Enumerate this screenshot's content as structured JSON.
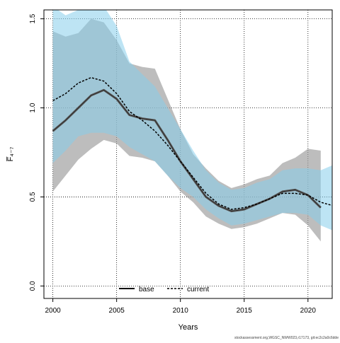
{
  "chart_data": {
    "type": "line",
    "title": "",
    "xlabel": "Years",
    "ylabel": "F̅₄₋₇",
    "xlim": [
      1999.3,
      2021.9
    ],
    "ylim": [
      -0.07,
      1.55
    ],
    "x_ticks": [
      2000,
      2005,
      2010,
      2015,
      2020
    ],
    "y_ticks": [
      0.0,
      0.5,
      1.0,
      1.5
    ],
    "y_tick_labels": [
      "0.0",
      "0.5",
      "1.0",
      "1.5"
    ],
    "grid": true,
    "legend": {
      "placement": "bottom-center"
    },
    "colors": {
      "base_band": "#999999",
      "current_band": "#87ceeb",
      "base_line": "#5a5a5a",
      "current_line": "#000000"
    },
    "series": [
      {
        "name": "base",
        "style": "solid",
        "x": [
          2000,
          2001,
          2002,
          2003,
          2004,
          2005,
          2006,
          2007,
          2008,
          2009,
          2010,
          2011,
          2012,
          2013,
          2014,
          2015,
          2016,
          2017,
          2018,
          2019,
          2020,
          2021
        ],
        "y": [
          0.87,
          0.93,
          1.0,
          1.07,
          1.1,
          1.05,
          0.96,
          0.94,
          0.93,
          0.82,
          0.7,
          0.6,
          0.5,
          0.45,
          0.42,
          0.43,
          0.46,
          0.49,
          0.53,
          0.54,
          0.51,
          0.44
        ],
        "lower": [
          0.53,
          0.62,
          0.71,
          0.77,
          0.82,
          0.8,
          0.73,
          0.72,
          0.7,
          0.62,
          0.53,
          0.47,
          0.39,
          0.35,
          0.32,
          0.33,
          0.35,
          0.38,
          0.41,
          0.4,
          0.34,
          0.25
        ],
        "upper": [
          1.43,
          1.4,
          1.42,
          1.5,
          1.48,
          1.38,
          1.25,
          1.23,
          1.22,
          1.05,
          0.88,
          0.74,
          0.66,
          0.59,
          0.55,
          0.57,
          0.6,
          0.62,
          0.69,
          0.72,
          0.77,
          0.76
        ]
      },
      {
        "name": "current",
        "style": "dashed",
        "x": [
          2000,
          2001,
          2002,
          2003,
          2004,
          2005,
          2006,
          2007,
          2008,
          2009,
          2010,
          2011,
          2012,
          2013,
          2014,
          2015,
          2016,
          2017,
          2018,
          2019,
          2020,
          2021,
          2022
        ],
        "y": [
          1.04,
          1.08,
          1.14,
          1.17,
          1.15,
          1.08,
          0.98,
          0.93,
          0.87,
          0.79,
          0.7,
          0.61,
          0.52,
          0.46,
          0.43,
          0.44,
          0.46,
          0.49,
          0.52,
          0.52,
          0.51,
          0.47,
          0.45
        ],
        "lower": [
          0.69,
          0.76,
          0.84,
          0.86,
          0.86,
          0.84,
          0.78,
          0.74,
          0.7,
          0.62,
          0.55,
          0.5,
          0.43,
          0.38,
          0.34,
          0.35,
          0.37,
          0.39,
          0.41,
          0.41,
          0.4,
          0.34,
          0.31
        ],
        "upper": [
          1.57,
          1.52,
          1.55,
          1.57,
          1.57,
          1.46,
          1.26,
          1.19,
          1.12,
          1.0,
          0.88,
          0.76,
          0.65,
          0.58,
          0.54,
          0.55,
          0.58,
          0.6,
          0.65,
          0.66,
          0.66,
          0.65,
          0.68
        ]
      }
    ],
    "footer_note": "stockassessment.org,WGSC_NWW023,r17173, git:ec2c2a0c6dde"
  }
}
